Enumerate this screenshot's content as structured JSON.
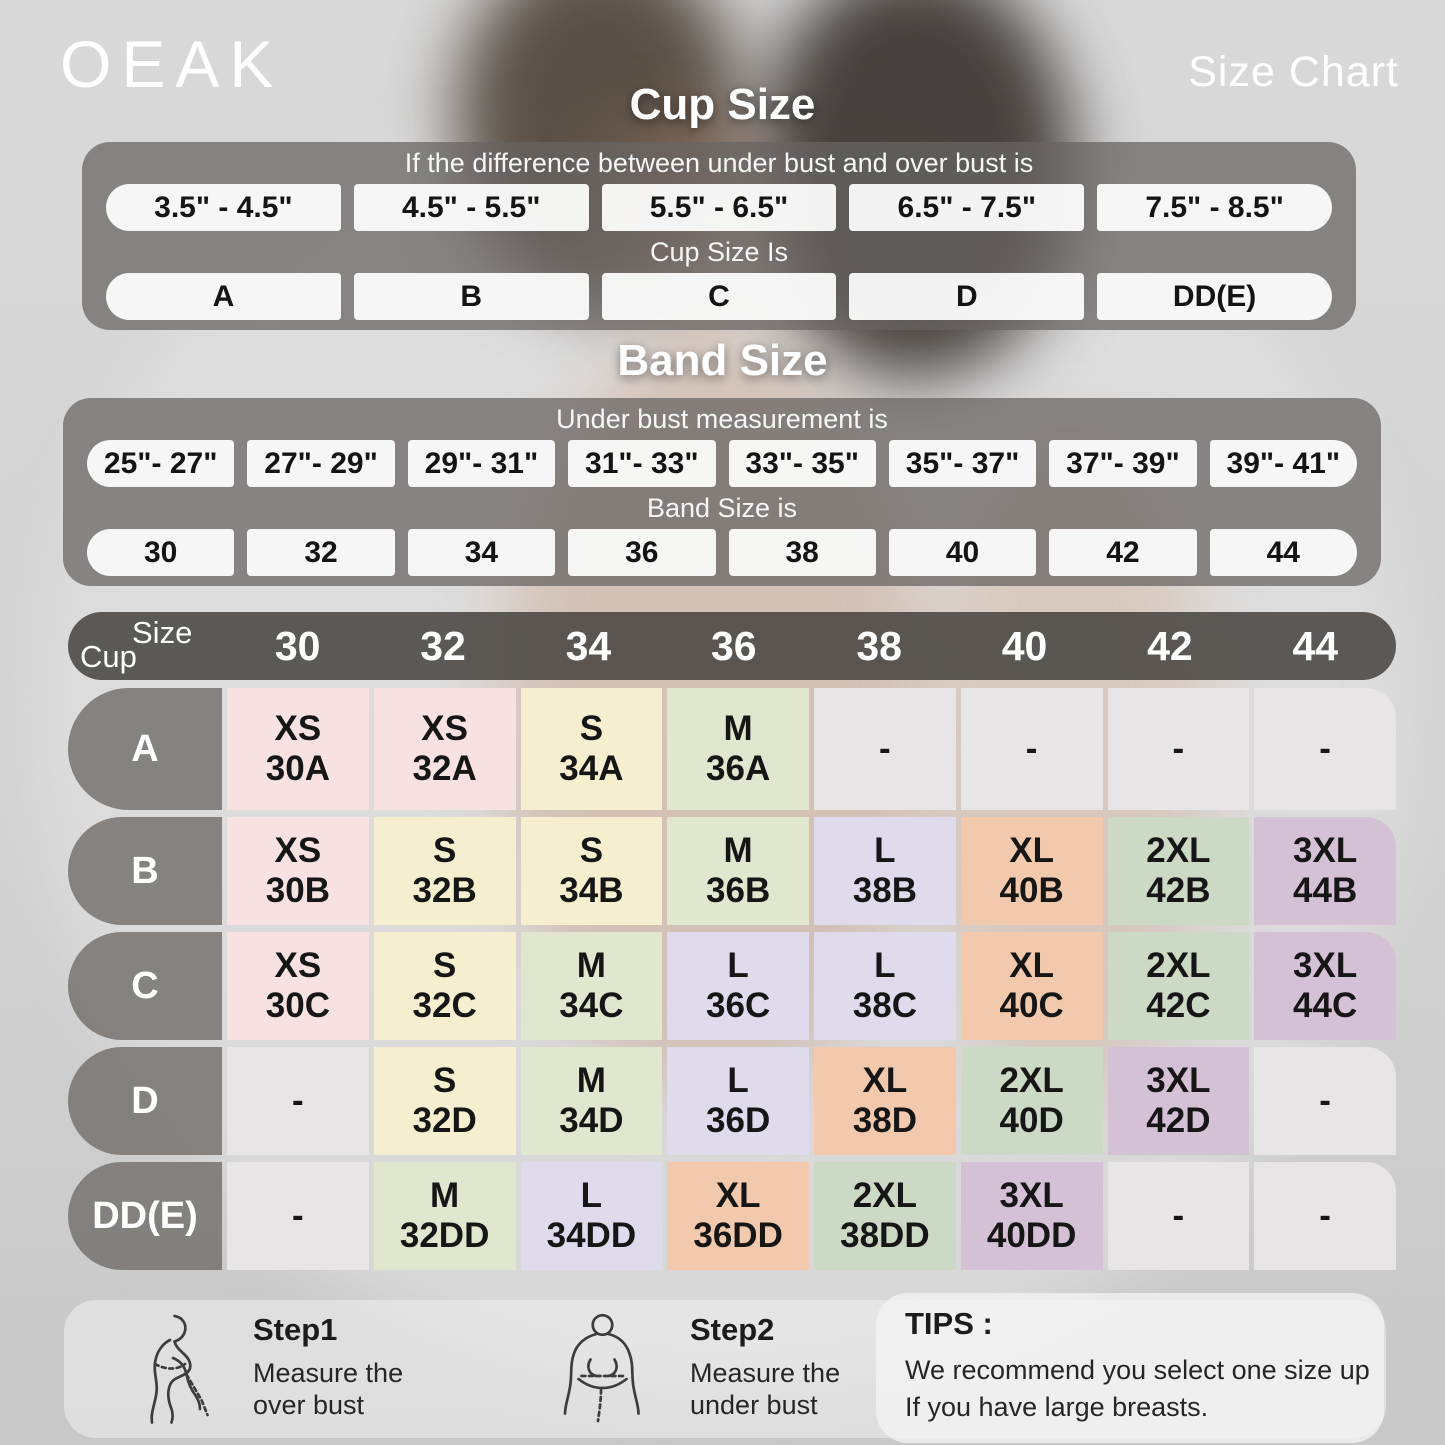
{
  "brand": "OEAK",
  "page_title": "Size Chart",
  "cup_section": {
    "title": "Cup Size",
    "condition_label": "If the  difference between under bust and over bust is",
    "ranges": [
      "3.5\" - 4.5\"",
      "4.5\" - 5.5\"",
      "5.5\" - 6.5\"",
      "6.5\" - 7.5\"",
      "7.5\" - 8.5\""
    ],
    "result_label": "Cup Size Is",
    "cups": [
      "A",
      "B",
      "C",
      "D",
      "DD(E)"
    ]
  },
  "band_section": {
    "title": "Band Size",
    "condition_label": "Under bust measurement is",
    "ranges": [
      "25\"- 27\"",
      "27\"- 29\"",
      "29\"- 31\"",
      "31\"- 33\"",
      "33\"- 35\"",
      "35\"- 37\"",
      "37\"- 39\"",
      "39\"- 41\""
    ],
    "result_label": "Band Size is",
    "bands": [
      "30",
      "32",
      "34",
      "36",
      "38",
      "40",
      "42",
      "44"
    ]
  },
  "matrix": {
    "corner_top": "Size",
    "corner_bottom": "Cup",
    "columns": [
      "30",
      "32",
      "34",
      "36",
      "38",
      "40",
      "42",
      "44"
    ],
    "rows": [
      {
        "cup": "A",
        "cells": [
          {
            "size": "XS",
            "code": "30A",
            "color": "pink"
          },
          {
            "size": "XS",
            "code": "32A",
            "color": "pink"
          },
          {
            "size": "S",
            "code": "34A",
            "color": "cream"
          },
          {
            "size": "M",
            "code": "36A",
            "color": "sage_light"
          },
          {
            "size": "-",
            "code": "",
            "color": "gray"
          },
          {
            "size": "-",
            "code": "",
            "color": "gray"
          },
          {
            "size": "-",
            "code": "",
            "color": "gray"
          },
          {
            "size": "-",
            "code": "",
            "color": "gray"
          }
        ]
      },
      {
        "cup": "B",
        "cells": [
          {
            "size": "XS",
            "code": "30B",
            "color": "pink"
          },
          {
            "size": "S",
            "code": "32B",
            "color": "cream"
          },
          {
            "size": "S",
            "code": "34B",
            "color": "cream"
          },
          {
            "size": "M",
            "code": "36B",
            "color": "sage_light"
          },
          {
            "size": "L",
            "code": "38B",
            "color": "lavender"
          },
          {
            "size": "XL",
            "code": "40B",
            "color": "peach"
          },
          {
            "size": "2XL",
            "code": "42B",
            "color": "sage"
          },
          {
            "size": "3XL",
            "code": "44B",
            "color": "mauve"
          }
        ]
      },
      {
        "cup": "C",
        "cells": [
          {
            "size": "XS",
            "code": "30C",
            "color": "pink"
          },
          {
            "size": "S",
            "code": "32C",
            "color": "cream"
          },
          {
            "size": "M",
            "code": "34C",
            "color": "sage_light"
          },
          {
            "size": "L",
            "code": "36C",
            "color": "lavender"
          },
          {
            "size": "L",
            "code": "38C",
            "color": "lavender"
          },
          {
            "size": "XL",
            "code": "40C",
            "color": "peach"
          },
          {
            "size": "2XL",
            "code": "42C",
            "color": "sage"
          },
          {
            "size": "3XL",
            "code": "44C",
            "color": "mauve"
          }
        ]
      },
      {
        "cup": "D",
        "cells": [
          {
            "size": "-",
            "code": "",
            "color": "gray"
          },
          {
            "size": "S",
            "code": "32D",
            "color": "cream"
          },
          {
            "size": "M",
            "code": "34D",
            "color": "sage_light"
          },
          {
            "size": "L",
            "code": "36D",
            "color": "lavender"
          },
          {
            "size": "XL",
            "code": "38D",
            "color": "peach"
          },
          {
            "size": "2XL",
            "code": "40D",
            "color": "sage"
          },
          {
            "size": "3XL",
            "code": "42D",
            "color": "mauve"
          },
          {
            "size": "-",
            "code": "",
            "color": "gray"
          }
        ]
      },
      {
        "cup": "DD(E)",
        "cells": [
          {
            "size": "-",
            "code": "",
            "color": "gray"
          },
          {
            "size": "M",
            "code": "32DD",
            "color": "sage_light"
          },
          {
            "size": "L",
            "code": "34DD",
            "color": "lavender"
          },
          {
            "size": "XL",
            "code": "36DD",
            "color": "peach"
          },
          {
            "size": "2XL",
            "code": "38DD",
            "color": "sage"
          },
          {
            "size": "3XL",
            "code": "40DD",
            "color": "mauve"
          },
          {
            "size": "-",
            "code": "",
            "color": "gray"
          },
          {
            "size": "-",
            "code": "",
            "color": "gray"
          }
        ]
      }
    ]
  },
  "cell_colors": {
    "pink": "#f8e2e1",
    "cream": "#f6efcf",
    "sage_light": "#e1e7cf",
    "lavender": "#dfdbec",
    "peach": "#f2c9ac",
    "sage": "#ccd9c4",
    "mauve": "#d5c1d5",
    "gray": "#e7e5e6"
  },
  "footer": {
    "step1": {
      "title": "Step1",
      "line1": "Measure the",
      "line2": "over bust"
    },
    "step2": {
      "title": "Step2",
      "line1": "Measure the",
      "line2": "under bust"
    },
    "tips": {
      "title": "TIPS :",
      "line1": "We recommend you select one size up",
      "line2": "If you have large breasts."
    }
  }
}
